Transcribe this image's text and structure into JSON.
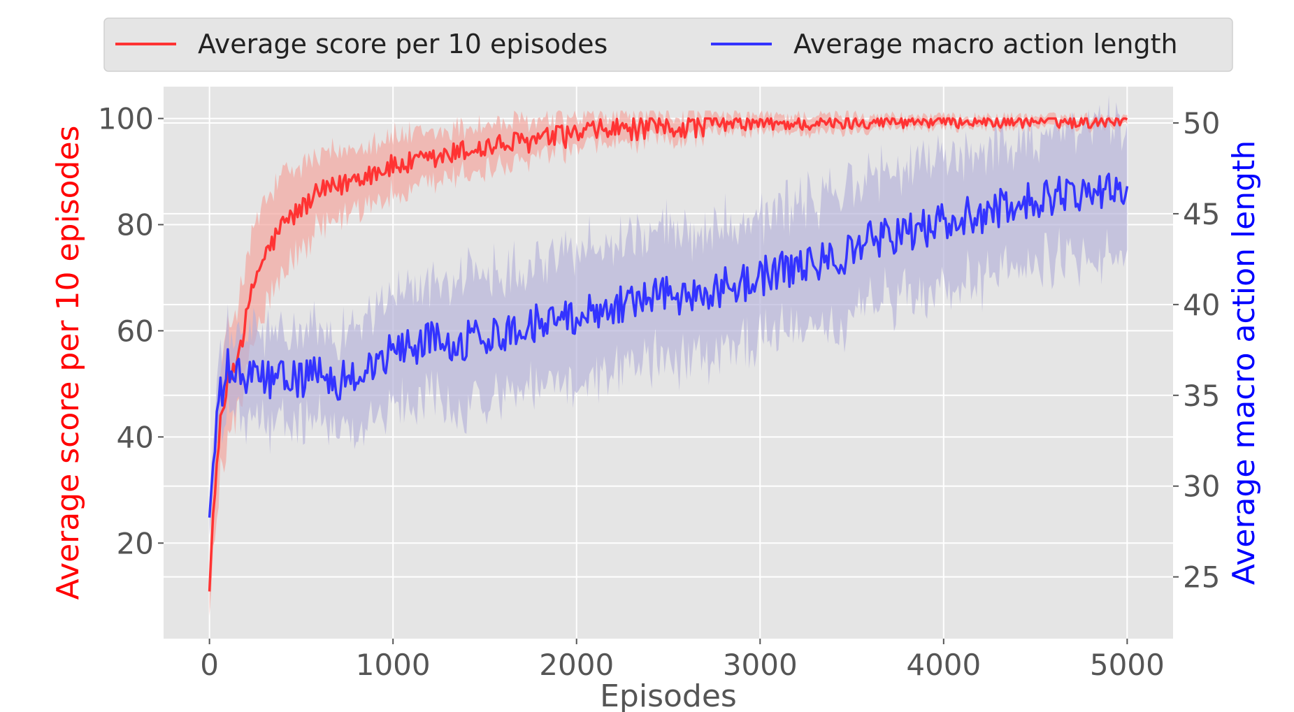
{
  "chart_data": {
    "type": "line",
    "title": "",
    "x": [
      0,
      50,
      100,
      150,
      200,
      250,
      300,
      400,
      500,
      600,
      700,
      800,
      900,
      1000,
      1200,
      1400,
      1600,
      1800,
      2000,
      2200,
      2400,
      2600,
      2800,
      3000,
      3200,
      3400,
      3600,
      3800,
      4000,
      4200,
      4400,
      4600,
      4800,
      5000
    ],
    "xlabel": "Episodes",
    "xlim": [
      -250,
      5250
    ],
    "xticks": [
      "0",
      "1000",
      "2000",
      "3000",
      "4000",
      "5000"
    ],
    "xtick_values": [
      0,
      1000,
      2000,
      3000,
      4000,
      5000
    ],
    "grid": true,
    "legend_position": "top",
    "y_left": {
      "label": "Average score per 10 episodes",
      "color": "#ff0000",
      "lim": [
        2,
        106
      ],
      "ticks": [
        "20",
        "40",
        "60",
        "80",
        "100"
      ],
      "tick_values": [
        20,
        40,
        60,
        80,
        100
      ]
    },
    "y_right": {
      "label": "Average macro action length",
      "color": "#0000ff",
      "lim": [
        21.6,
        52
      ],
      "ticks": [
        "25",
        "30",
        "35",
        "40",
        "45",
        "50"
      ],
      "tick_values": [
        25,
        30,
        35,
        40,
        45,
        50
      ]
    },
    "series": [
      {
        "name": "Average score per 10 episodes",
        "axis": "left",
        "color": "#ff3333",
        "band_color": "#f4a6a0",
        "values": [
          13,
          40,
          50,
          55,
          62,
          70,
          74,
          80,
          83,
          86,
          87,
          89,
          90,
          91,
          92,
          94,
          95,
          96,
          97,
          98,
          98,
          98.5,
          99,
          99,
          99,
          99,
          99.5,
          99.5,
          99.5,
          99.5,
          99.5,
          99.5,
          99.5,
          100
        ],
        "band": [
          6,
          10,
          10,
          10,
          10,
          10,
          10,
          9,
          8,
          7,
          6.5,
          6,
          6,
          5.5,
          5,
          4.5,
          4,
          3.5,
          3,
          2.5,
          2.5,
          2,
          1.5,
          1.5,
          1.5,
          1.5,
          1.2,
          1,
          1,
          1,
          1,
          1,
          1,
          0.8
        ],
        "noise": 2.2
      },
      {
        "name": "Average macro action length",
        "axis": "right",
        "color": "#3333ff",
        "band_color": "#b3b0d8",
        "values": [
          28.5,
          34.5,
          36.5,
          36,
          36,
          36,
          36,
          35.8,
          36,
          36,
          35.8,
          36.2,
          36.6,
          37.5,
          38,
          38,
          38.5,
          39,
          39.5,
          40,
          40.5,
          40.5,
          41,
          41.5,
          42,
          42.5,
          43.5,
          44,
          44.5,
          45,
          45.5,
          46,
          46.3,
          46.5
        ],
        "band": [
          1,
          2,
          2,
          2,
          2.5,
          2.5,
          2.5,
          2.5,
          2.5,
          2.5,
          2.5,
          2.8,
          3,
          3,
          3.2,
          3.5,
          3.5,
          3.5,
          3.5,
          3.5,
          3.5,
          3.5,
          3.5,
          3.5,
          3.5,
          3.5,
          3.5,
          3.5,
          3.5,
          3.5,
          3.5,
          3.5,
          3.5,
          3.5
        ],
        "noise": 1.1
      }
    ]
  },
  "colors": {
    "plot_background": "#e5e5e5",
    "legend_background": "#e5e5e5",
    "grid": "#ffffff",
    "tick_text": "#555555"
  }
}
